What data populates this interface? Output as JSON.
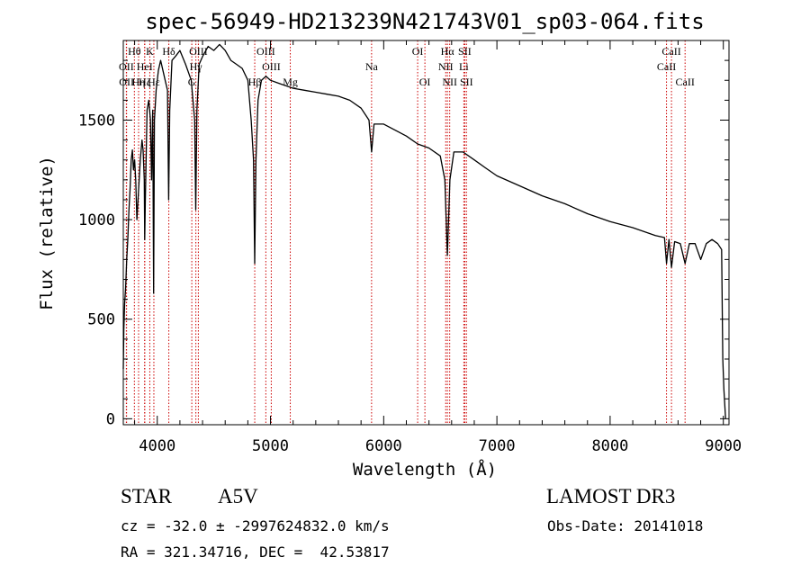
{
  "chart_data": {
    "type": "line",
    "title": "spec-56949-HD213239N421743V01_sp03-064.fits",
    "xlabel": "Wavelength (Å)",
    "ylabel": "Flux (relative)",
    "xlim": [
      3700,
      9050
    ],
    "ylim": [
      -30,
      1900
    ],
    "xticks": [
      4000,
      5000,
      6000,
      7000,
      8000,
      9000
    ],
    "yticks": [
      0,
      500,
      1000,
      1500
    ],
    "x_minor_step": 200,
    "y_minor_step": 100,
    "series": [
      {
        "name": "spectrum",
        "x": [
          3700,
          3705,
          3712,
          3720,
          3730,
          3740,
          3750,
          3760,
          3770,
          3780,
          3790,
          3800,
          3810,
          3820,
          3835,
          3850,
          3865,
          3875,
          3885,
          3889,
          3895,
          3910,
          3925,
          3940,
          3950,
          3960,
          3968,
          3975,
          3990,
          4010,
          4030,
          4050,
          4070,
          4090,
          4101,
          4110,
          4130,
          4160,
          4200,
          4250,
          4300,
          4330,
          4340,
          4350,
          4370,
          4400,
          4450,
          4500,
          4550,
          4600,
          4650,
          4700,
          4750,
          4800,
          4830,
          4850,
          4861,
          4872,
          4890,
          4920,
          4960,
          5000,
          5050,
          5100,
          5150,
          5200,
          5300,
          5400,
          5500,
          5600,
          5700,
          5800,
          5870,
          5893,
          5915,
          6000,
          6100,
          6200,
          6300,
          6400,
          6500,
          6540,
          6563,
          6585,
          6620,
          6700,
          6800,
          6900,
          7000,
          7200,
          7400,
          7600,
          7800,
          8000,
          8200,
          8400,
          8480,
          8498,
          8520,
          8542,
          8570,
          8620,
          8662,
          8700,
          8750,
          8800,
          8850,
          8900,
          8950,
          8985,
          8995,
          9005,
          9020
        ],
        "values": [
          250,
          450,
          580,
          650,
          800,
          900,
          1050,
          1150,
          1300,
          1350,
          1250,
          1300,
          1200,
          1000,
          1150,
          1300,
          1400,
          1350,
          1200,
          900,
          1100,
          1550,
          1600,
          1500,
          1200,
          1550,
          630,
          1500,
          1650,
          1750,
          1800,
          1750,
          1700,
          1650,
          1100,
          1550,
          1800,
          1820,
          1850,
          1780,
          1700,
          1500,
          1050,
          1550,
          1780,
          1820,
          1870,
          1850,
          1880,
          1850,
          1800,
          1780,
          1760,
          1700,
          1500,
          1300,
          780,
          1300,
          1600,
          1700,
          1720,
          1700,
          1690,
          1680,
          1670,
          1660,
          1650,
          1640,
          1630,
          1620,
          1600,
          1560,
          1500,
          1340,
          1480,
          1480,
          1450,
          1420,
          1380,
          1360,
          1320,
          1200,
          820,
          1200,
          1340,
          1340,
          1300,
          1260,
          1220,
          1170,
          1120,
          1080,
          1030,
          990,
          960,
          920,
          910,
          780,
          900,
          760,
          890,
          880,
          780,
          880,
          880,
          800,
          880,
          900,
          880,
          850,
          300,
          150,
          0
        ]
      }
    ],
    "lines": [
      {
        "name": "Hθ",
        "x": 3798,
        "row": 1
      },
      {
        "name": "OII",
        "x": 3727,
        "row": 2
      },
      {
        "name": "OII",
        "x": 3729,
        "row": 3
      },
      {
        "name": "K",
        "x": 3934,
        "row": 1
      },
      {
        "name": "HeI",
        "x": 3889,
        "row": 2
      },
      {
        "name": "Hη",
        "x": 3835,
        "row": 3
      },
      {
        "name": "Hδ",
        "x": 4102,
        "row": 1
      },
      {
        "name": "Hζ",
        "x": 3889,
        "row": 3
      },
      {
        "name": "Hε",
        "x": 3970,
        "row": 3
      },
      {
        "name": "OIII",
        "x": 4363,
        "row": 1
      },
      {
        "name": "Hγ",
        "x": 4341,
        "row": 2
      },
      {
        "name": "G",
        "x": 4305,
        "row": 3
      },
      {
        "name": "OIII",
        "x": 4959,
        "row": 1
      },
      {
        "name": "OIII",
        "x": 5007,
        "row": 2
      },
      {
        "name": "Hβ",
        "x": 4861,
        "row": 3
      },
      {
        "name": "Mg",
        "x": 5175,
        "row": 3
      },
      {
        "name": "Na",
        "x": 5893,
        "row": 2
      },
      {
        "name": "OI",
        "x": 6300,
        "row": 1
      },
      {
        "name": "OI",
        "x": 6364,
        "row": 3
      },
      {
        "name": "Hα",
        "x": 6563,
        "row": 1
      },
      {
        "name": "SII",
        "x": 6716,
        "row": 1
      },
      {
        "name": "NII",
        "x": 6548,
        "row": 2
      },
      {
        "name": "Li",
        "x": 6708,
        "row": 2
      },
      {
        "name": "NII",
        "x": 6583,
        "row": 3
      },
      {
        "name": "SII",
        "x": 6731,
        "row": 3
      },
      {
        "name": "CaII",
        "x": 8542,
        "row": 1
      },
      {
        "name": "CaII",
        "x": 8498,
        "row": 2
      },
      {
        "name": "CaII",
        "x": 8662,
        "row": 3
      }
    ],
    "colors": {
      "spectrum": "#000000",
      "lines": "#cc0000"
    }
  },
  "info": {
    "class": "STAR",
    "subclass": "A5V",
    "survey": "LAMOST DR3",
    "cz": "cz = -32.0 ± -2997624832.0 km/s",
    "obs_date": "Obs-Date: 20141018",
    "coords": "RA = 321.34716, DEC =  42.53817"
  }
}
